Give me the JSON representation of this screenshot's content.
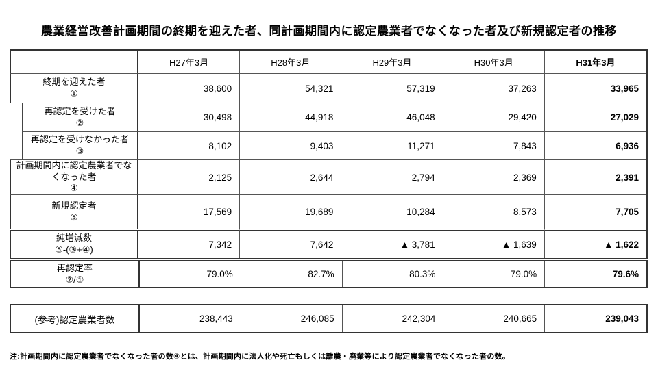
{
  "title": "農業経営改善計画期間の終期を迎えた者、同計画期間内に認定農業者でなくなった者及び新規認定者の推移",
  "columns": [
    "H27年3月",
    "H28年3月",
    "H29年3月",
    "H30年3月",
    "H31年3月"
  ],
  "main_table": {
    "rows": [
      {
        "label": "終期を迎えた者",
        "symbol": "①",
        "values": [
          "38,600",
          "54,321",
          "57,319",
          "37,263",
          "33,965"
        ]
      },
      {
        "label": "再認定を受けた者",
        "symbol": "②",
        "values": [
          "30,498",
          "44,918",
          "46,048",
          "29,420",
          "27,029"
        ]
      },
      {
        "label": "再認定を受けなかった者",
        "symbol": "③",
        "values": [
          "8,102",
          "9,403",
          "11,271",
          "7,843",
          "6,936"
        ]
      },
      {
        "label": "計画期間内に認定農業者でなくなった者",
        "symbol": "④",
        "values": [
          "2,125",
          "2,644",
          "2,794",
          "2,369",
          "2,391"
        ]
      },
      {
        "label": "新規認定者",
        "symbol": "⑤",
        "values": [
          "17,569",
          "19,689",
          "10,284",
          "8,573",
          "7,705"
        ]
      },
      {
        "label": "純増減数",
        "symbol": "⑤-(③+④)",
        "values": [
          "7,342",
          "7,642",
          "▲ 3,781",
          "▲ 1,639",
          "▲ 1,622"
        ]
      }
    ]
  },
  "reauth_rate": {
    "label": "再認定率",
    "symbol": "②/①",
    "values": [
      "79.0%",
      "82.7%",
      "80.3%",
      "79.0%",
      "79.6%"
    ]
  },
  "reference": {
    "label": "(参考)認定農業者数",
    "values": [
      "238,443",
      "246,085",
      "242,304",
      "240,665",
      "239,043"
    ]
  },
  "note": "注:計画期間内に認定農業者でなくなった者の数④とは、計画期間内に法人化や死亡もしくは離農・廃業等により認定農業者でなくなった者の数。"
}
